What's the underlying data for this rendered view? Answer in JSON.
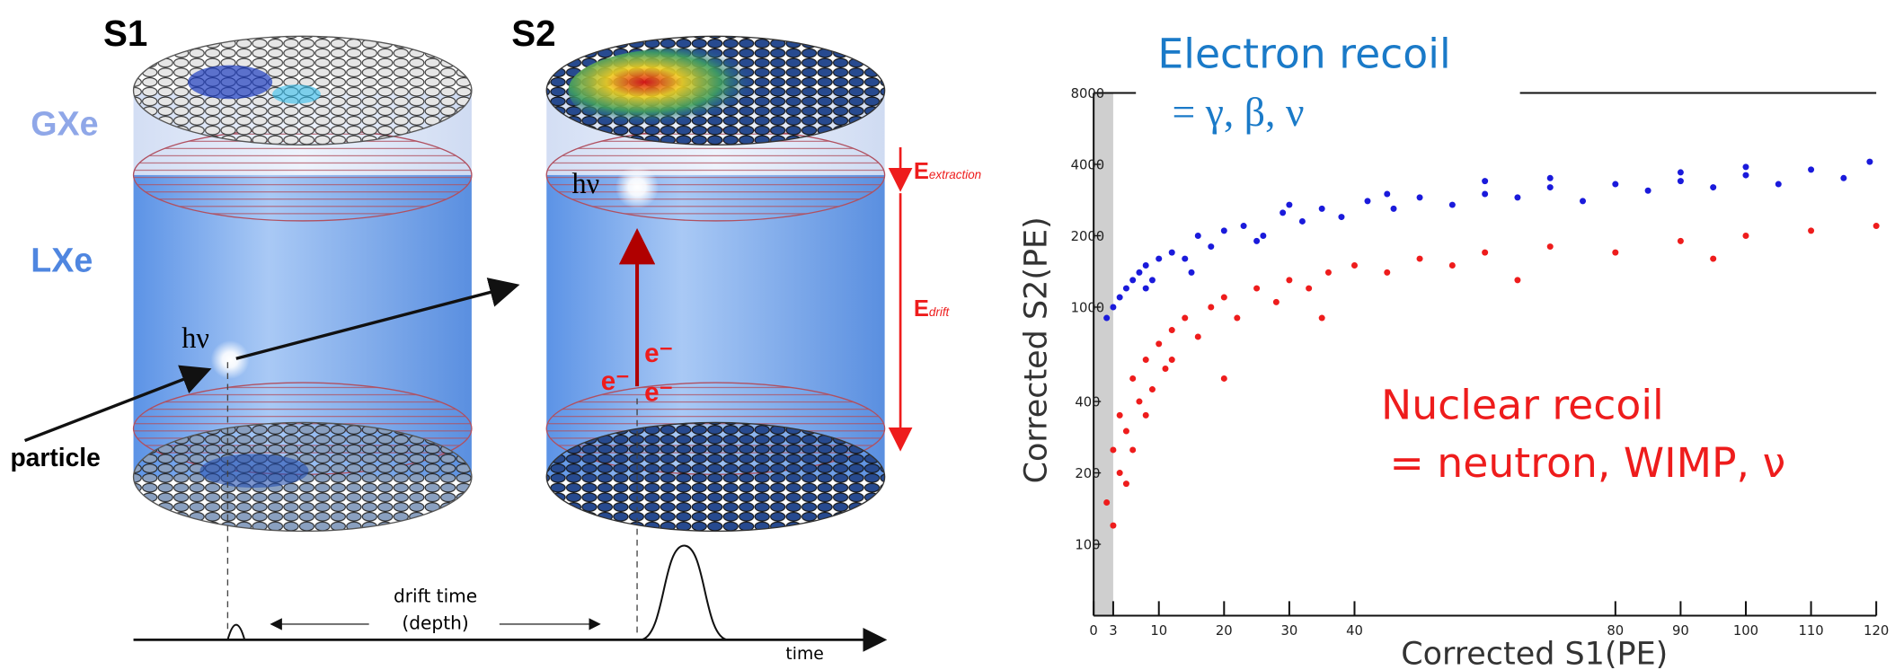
{
  "diagram": {
    "s1": "S1",
    "s2": "S2",
    "gas": "GXe",
    "liquid": "LXe",
    "photon1": "hν",
    "photon2": "hν",
    "particle": "particle",
    "electron1": "e⁻",
    "electron2": "e⁻",
    "electron3": "e⁻",
    "field_extraction": {
      "main": "E",
      "sub": "extraction"
    },
    "field_drift": {
      "main": "E",
      "sub": "drift"
    },
    "drift_time": "drift time",
    "depth": "(depth)",
    "time": "time"
  },
  "chart_data": {
    "type": "scatter",
    "x_label": "Corrected S1(PE)",
    "y_label": "Corrected S2(PE)",
    "xlim": [
      0,
      120
    ],
    "xticks": [
      0,
      3,
      10,
      20,
      30,
      40,
      80,
      90,
      100,
      110,
      120
    ],
    "ylim": [
      50,
      8000
    ],
    "yticks": [
      100,
      200,
      400,
      1000,
      2000,
      4000,
      8000
    ],
    "log_y": true,
    "annotations": [
      "= γ, β, ν",
      "= neutron, WIMP, ν"
    ],
    "series": [
      {
        "name": "Electron recoil",
        "color": "#1a1adb",
        "x": [
          2,
          3,
          4,
          5,
          6,
          7,
          8,
          9,
          10,
          12,
          14,
          16,
          18,
          20,
          23,
          26,
          29,
          32,
          35,
          38,
          42,
          46,
          50,
          55,
          60,
          65,
          70,
          75,
          80,
          85,
          90,
          95,
          100,
          105,
          110,
          115,
          119,
          15,
          25,
          45,
          70,
          100,
          8,
          30,
          60,
          90
        ],
        "values": [
          900,
          1000,
          1100,
          1200,
          1300,
          1400,
          1500,
          1300,
          1600,
          1700,
          1600,
          2000,
          1800,
          2100,
          2200,
          2000,
          2500,
          2300,
          2600,
          2400,
          2800,
          2600,
          2900,
          2700,
          3000,
          2900,
          3200,
          2800,
          3300,
          3100,
          3400,
          3200,
          3600,
          3300,
          3800,
          3500,
          4100,
          1400,
          1900,
          3000,
          3500,
          3900,
          1200,
          2700,
          3400,
          3700
        ]
      },
      {
        "name": "Nuclear recoil",
        "color": "#ee1c1c",
        "x": [
          2,
          3,
          4,
          5,
          6,
          7,
          8,
          9,
          10,
          11,
          12,
          14,
          16,
          18,
          20,
          22,
          25,
          28,
          30,
          33,
          36,
          40,
          45,
          50,
          55,
          60,
          70,
          80,
          90,
          100,
          110,
          120,
          4,
          6,
          3,
          5,
          8,
          12,
          20,
          35,
          65,
          95
        ],
        "values": [
          150,
          250,
          350,
          300,
          500,
          400,
          600,
          450,
          700,
          550,
          800,
          900,
          750,
          1000,
          1100,
          900,
          1200,
          1050,
          1300,
          1200,
          1400,
          1500,
          1400,
          1600,
          1500,
          1700,
          1800,
          1700,
          1900,
          2000,
          2100,
          2200,
          200,
          250,
          120,
          180,
          350,
          600,
          500,
          900,
          1300,
          1600
        ]
      }
    ]
  }
}
